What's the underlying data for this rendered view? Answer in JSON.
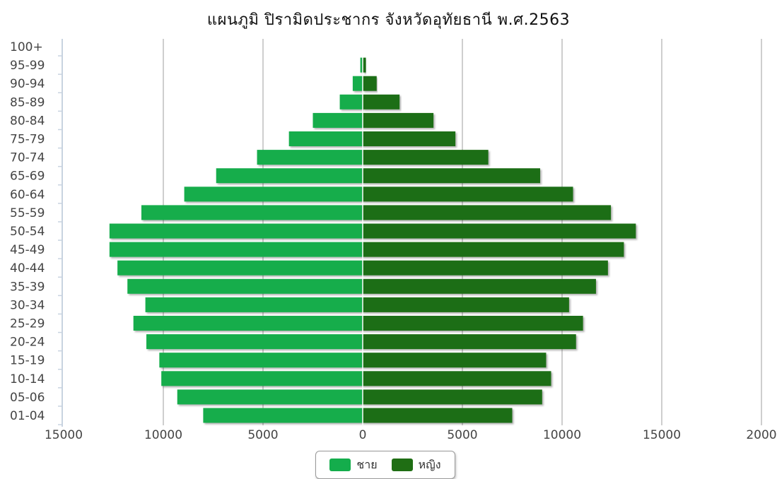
{
  "chart_data": {
    "type": "bar",
    "orientation": "horizontal",
    "stacked_diverging": true,
    "title": "แผนภูมิ ปิรามิดประชากร จังหวัดอุทัยธานี พ.ศ.2563",
    "categories": [
      "01-04",
      "05-06",
      "10-14",
      "15-19",
      "20-24",
      "25-29",
      "30-34",
      "35-39",
      "40-44",
      "45-49",
      "50-54",
      "55-59",
      "60-64",
      "65-69",
      "70-74",
      "75-79",
      "80-84",
      "85-89",
      "90-94",
      "95-99",
      "100+"
    ],
    "series": [
      {
        "name": "ชาย",
        "color": "#14ad4c",
        "values": [
          8000,
          9300,
          10100,
          10200,
          10850,
          11500,
          10900,
          11800,
          12300,
          12700,
          12700,
          11100,
          8950,
          7350,
          5300,
          3700,
          2500,
          1150,
          500,
          120,
          0
        ]
      },
      {
        "name": "หญิง",
        "color": "#1f6e14",
        "values": [
          7500,
          9000,
          9450,
          9200,
          10700,
          11050,
          10350,
          11700,
          12300,
          13100,
          13700,
          12450,
          10550,
          8900,
          6300,
          4650,
          3550,
          1850,
          700,
          160,
          0
        ]
      }
    ],
    "x_ticks": [
      "15000",
      "10000",
      "5000",
      "0",
      "5000",
      "10000",
      "15000",
      "2000"
    ],
    "xlim": [
      -15000,
      20000
    ],
    "grid": true,
    "legend_position": "bottom-center"
  }
}
